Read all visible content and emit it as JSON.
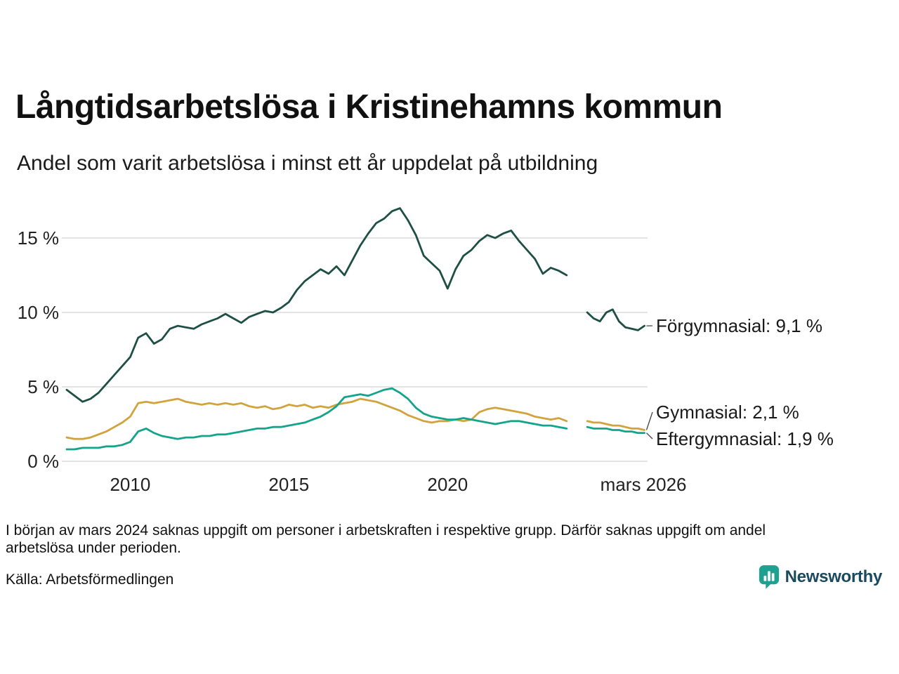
{
  "chart_data": {
    "type": "line",
    "title": "Långtidsarbetslösa i Kristinehamns kommun",
    "subtitle": "Andel som varit arbetslösa i minst ett år uppdelat på utbildning",
    "x_domain": [
      2008,
      2026.3
    ],
    "y_domain": [
      0,
      17.5
    ],
    "grid": "horizontal",
    "y_ticks": [
      {
        "v": 0,
        "label": "0 %"
      },
      {
        "v": 5,
        "label": "5 %"
      },
      {
        "v": 10,
        "label": "10 %"
      },
      {
        "v": 15,
        "label": "15 %"
      }
    ],
    "x_ticks": [
      {
        "v": 2010,
        "label": "2010"
      },
      {
        "v": 2015,
        "label": "2015"
      },
      {
        "v": 2020,
        "label": "2020"
      },
      {
        "v": 2026.17,
        "label": "mars 2026"
      }
    ],
    "gap_note": "data missing around early 2024",
    "series": [
      {
        "id": "forgymnasial",
        "name": "Förgymnasial",
        "color": "#1d4f43",
        "end_label": "Förgymnasial: 9,1 %",
        "end_value": 9.1,
        "segments": [
          {
            "x0": 2008.0,
            "dx": 0.25,
            "y": [
              4.8,
              4.4,
              4.0,
              4.2,
              4.6,
              5.2,
              5.8,
              6.4,
              7.0,
              8.3,
              8.6,
              7.9,
              8.2,
              8.9,
              9.1,
              9.0,
              8.9,
              9.2,
              9.4,
              9.6,
              9.9,
              9.6,
              9.3,
              9.7,
              9.9,
              10.1,
              10.0,
              10.3,
              10.7,
              11.5,
              12.1,
              12.5,
              12.9,
              12.6,
              13.1,
              12.5,
              13.5,
              14.5,
              15.3,
              16.0,
              16.3,
              16.8,
              17.0,
              16.2,
              15.2,
              13.8,
              13.3,
              12.8,
              11.6,
              12.9,
              13.8,
              14.2,
              14.8,
              15.2,
              15.0,
              15.3,
              15.5,
              14.8,
              14.2,
              13.6,
              12.6,
              13.0,
              12.8,
              12.5
            ]
          },
          {
            "x0": 2024.4,
            "dx": 0.2,
            "y": [
              10.0,
              9.6,
              9.4,
              10.0,
              10.2,
              9.4,
              9.0,
              8.9,
              8.8,
              9.1
            ]
          }
        ]
      },
      {
        "id": "gymnasial",
        "name": "Gymnasial",
        "color": "#d1a33c",
        "end_label": "Gymnasial: 2,1 %",
        "end_value": 2.1,
        "segments": [
          {
            "x0": 2008.0,
            "dx": 0.25,
            "y": [
              1.6,
              1.5,
              1.5,
              1.6,
              1.8,
              2.0,
              2.3,
              2.6,
              3.0,
              3.9,
              4.0,
              3.9,
              4.0,
              4.1,
              4.2,
              4.0,
              3.9,
              3.8,
              3.9,
              3.8,
              3.9,
              3.8,
              3.9,
              3.7,
              3.6,
              3.7,
              3.5,
              3.6,
              3.8,
              3.7,
              3.8,
              3.6,
              3.7,
              3.6,
              3.8,
              3.9,
              4.0,
              4.2,
              4.1,
              4.0,
              3.8,
              3.6,
              3.4,
              3.1,
              2.9,
              2.7,
              2.6,
              2.7,
              2.7,
              2.8,
              2.7,
              2.8,
              3.3,
              3.5,
              3.6,
              3.5,
              3.4,
              3.3,
              3.2,
              3.0,
              2.9,
              2.8,
              2.9,
              2.7
            ]
          },
          {
            "x0": 2024.4,
            "dx": 0.2,
            "y": [
              2.7,
              2.6,
              2.6,
              2.5,
              2.4,
              2.4,
              2.3,
              2.2,
              2.2,
              2.1
            ]
          }
        ]
      },
      {
        "id": "eftergymnasial",
        "name": "Eftergymnasial",
        "color": "#14a38b",
        "end_label": "Eftergymnasial: 1,9 %",
        "end_value": 1.9,
        "segments": [
          {
            "x0": 2008.0,
            "dx": 0.25,
            "y": [
              0.8,
              0.8,
              0.9,
              0.9,
              0.9,
              1.0,
              1.0,
              1.1,
              1.3,
              2.0,
              2.2,
              1.9,
              1.7,
              1.6,
              1.5,
              1.6,
              1.6,
              1.7,
              1.7,
              1.8,
              1.8,
              1.9,
              2.0,
              2.1,
              2.2,
              2.2,
              2.3,
              2.3,
              2.4,
              2.5,
              2.6,
              2.8,
              3.0,
              3.3,
              3.7,
              4.3,
              4.4,
              4.5,
              4.4,
              4.6,
              4.8,
              4.9,
              4.6,
              4.2,
              3.6,
              3.2,
              3.0,
              2.9,
              2.8,
              2.8,
              2.9,
              2.8,
              2.7,
              2.6,
              2.5,
              2.6,
              2.7,
              2.7,
              2.6,
              2.5,
              2.4,
              2.4,
              2.3,
              2.2
            ]
          },
          {
            "x0": 2024.4,
            "dx": 0.2,
            "y": [
              2.3,
              2.2,
              2.2,
              2.2,
              2.1,
              2.1,
              2.0,
              2.0,
              1.9,
              1.9
            ]
          }
        ]
      }
    ]
  },
  "footer": {
    "note": "I början av mars 2024 saknas uppgift om personer i arbetskraften i respektive grupp. Därför saknas uppgift om andel arbetslösa under perioden.",
    "source": "Källa: Arbetsförmedlingen",
    "brand": "Newsworthy"
  }
}
